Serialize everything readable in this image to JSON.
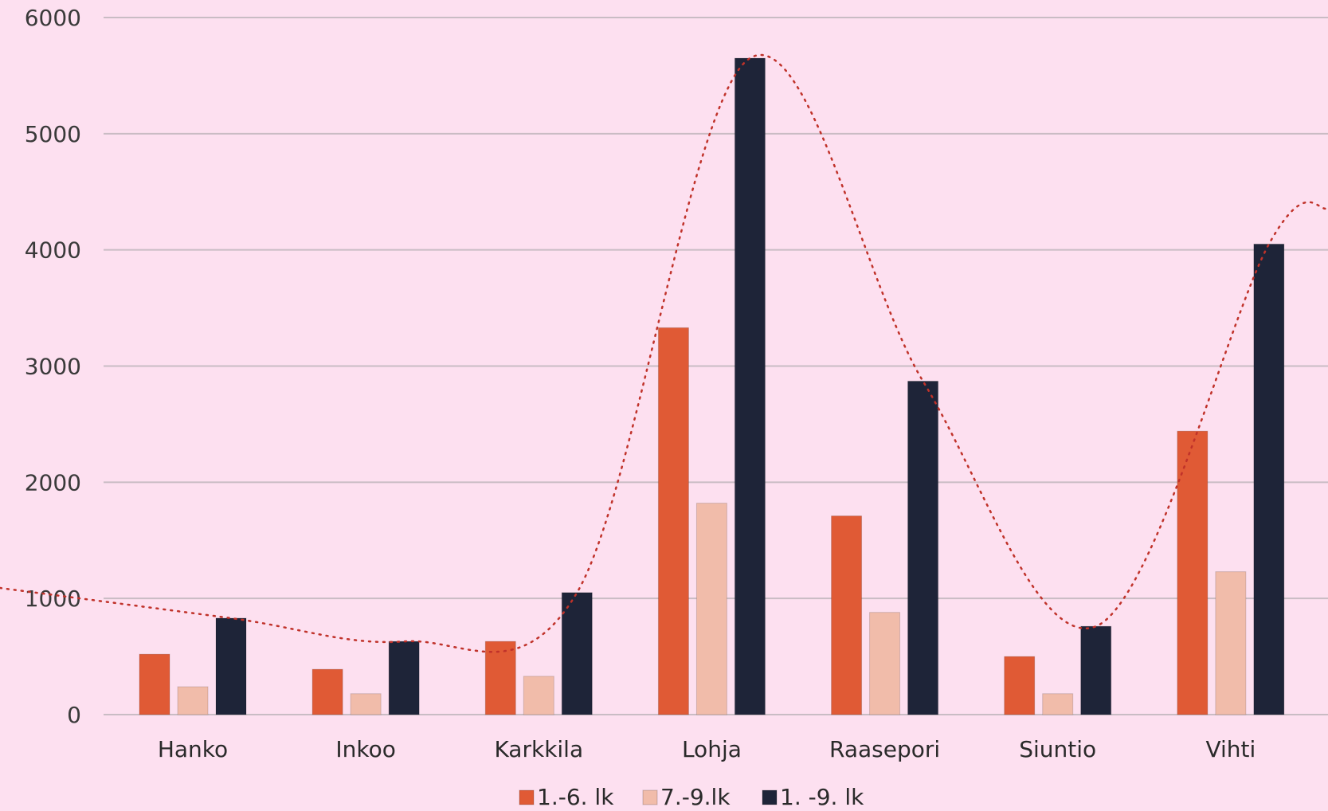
{
  "chart_data": {
    "type": "bar",
    "title": "",
    "xlabel": "",
    "ylabel": "",
    "categories": [
      "Hanko",
      "Inkoo",
      "Karkkila",
      "Lohja",
      "Raasepori",
      "Siuntio",
      "Vihti"
    ],
    "series": [
      {
        "name": "1.-6. lk",
        "values": [
          520,
          390,
          630,
          3330,
          1710,
          500,
          2440
        ],
        "color": "#e05a35"
      },
      {
        "name": "7.-9.lk",
        "values": [
          240,
          180,
          330,
          1820,
          880,
          180,
          1230
        ],
        "color": "#f1bcaa"
      },
      {
        "name": "1. -9. lk",
        "values": [
          830,
          630,
          1050,
          5650,
          2870,
          760,
          4050
        ],
        "color": "#1e2438"
      }
    ],
    "trendline": {
      "series": "1. -9. lk",
      "style": "dotted",
      "color": "#c0322a"
    },
    "yticks": [
      "0",
      "1000",
      "2000",
      "3000",
      "4000",
      "5000",
      "6000"
    ],
    "ylim": [
      0,
      6000
    ],
    "grid": true,
    "legend": "bottom"
  }
}
